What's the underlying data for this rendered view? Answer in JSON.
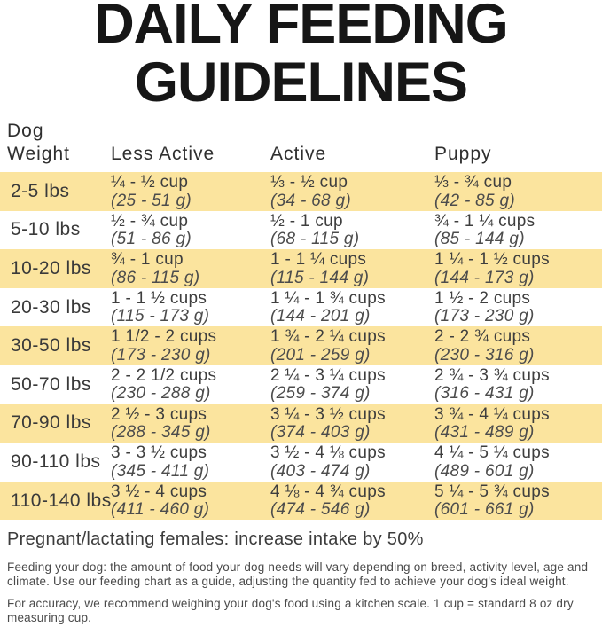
{
  "title": {
    "line1": "DAILY FEEDING",
    "line2": "GUIDELINES"
  },
  "table": {
    "headers": {
      "weight_line1": "Dog",
      "weight_line2": "Weight",
      "less_active": "Less Active",
      "active": "Active",
      "puppy": "Puppy"
    },
    "rows": [
      {
        "weight": "2-5 lbs",
        "less_active": {
          "cups": "¼ - ½ cup",
          "grams": "(25 - 51 g)"
        },
        "active": {
          "cups": "⅓ - ½ cup",
          "grams": "(34 - 68 g)"
        },
        "puppy": {
          "cups": "⅓ - ¾ cup",
          "grams": "(42 - 85 g)"
        }
      },
      {
        "weight": "5-10 lbs",
        "less_active": {
          "cups": "½ - ¾ cup",
          "grams": "(51 - 86 g)"
        },
        "active": {
          "cups": "½ - 1 cup",
          "grams": "(68 - 115 g)"
        },
        "puppy": {
          "cups": "¾ - 1 ¼ cups",
          "grams": "(85 - 144 g)"
        }
      },
      {
        "weight": "10-20 lbs",
        "less_active": {
          "cups": "¾ - 1 cup",
          "grams": "(86 - 115 g)"
        },
        "active": {
          "cups": "1 - 1 ¼ cups",
          "grams": "(115 - 144 g)"
        },
        "puppy": {
          "cups": "1 ¼ - 1 ½ cups",
          "grams": "(144 - 173 g)"
        }
      },
      {
        "weight": "20-30 lbs",
        "less_active": {
          "cups": "1 - 1 ½ cups",
          "grams": "(115 - 173 g)"
        },
        "active": {
          "cups": "1 ¼ - 1 ¾ cups",
          "grams": "(144 - 201 g)"
        },
        "puppy": {
          "cups": "1 ½ - 2 cups",
          "grams": "(173 - 230 g)"
        }
      },
      {
        "weight": "30-50 lbs",
        "less_active": {
          "cups": "1 1/2 - 2 cups",
          "grams": "(173 - 230 g)"
        },
        "active": {
          "cups": "1 ¾ - 2 ¼ cups",
          "grams": "(201 - 259 g)"
        },
        "puppy": {
          "cups": "2 - 2 ¾ cups",
          "grams": "(230 - 316 g)"
        }
      },
      {
        "weight": "50-70 lbs",
        "less_active": {
          "cups": "2 - 2 1/2 cups",
          "grams": "(230 - 288 g)"
        },
        "active": {
          "cups": "2 ¼ - 3 ¼ cups",
          "grams": "(259 - 374 g)"
        },
        "puppy": {
          "cups": "2 ¾ - 3 ¾ cups",
          "grams": "(316 - 431 g)"
        }
      },
      {
        "weight": "70-90 lbs",
        "less_active": {
          "cups": "2 ½ - 3 cups",
          "grams": "(288 - 345 g)"
        },
        "active": {
          "cups": "3 ¼ - 3 ½ cups",
          "grams": "(374 - 403 g)"
        },
        "puppy": {
          "cups": "3 ¾ - 4 ¼ cups",
          "grams": "(431 - 489 g)"
        }
      },
      {
        "weight": "90-110 lbs",
        "less_active": {
          "cups": "3 - 3 ½ cups",
          "grams": "(345 - 411 g)"
        },
        "active": {
          "cups": "3 ½ - 4 ⅛ cups",
          "grams": "(403 - 474 g)"
        },
        "puppy": {
          "cups": "4 ¼ - 5 ¼ cups",
          "grams": "(489 - 601 g)"
        }
      },
      {
        "weight": "110-140 lbs",
        "less_active": {
          "cups": "3 ½ - 4 cups",
          "grams": "(411 - 460 g)"
        },
        "active": {
          "cups": "4 ⅛ - 4 ¾ cups",
          "grams": "(474 - 546 g)"
        },
        "puppy": {
          "cups": "5 ¼ - 5 ¾ cups",
          "grams": "(601 - 661 g)"
        }
      }
    ]
  },
  "notes": {
    "pregnant": "Pregnant/lactating females: increase intake by 50%",
    "para1": "Feeding your dog: the amount of food your dog needs will vary depending on breed, activity level, age and climate. Use our feeding chart as a guide, adjusting the quantity fed to achieve your dog's ideal weight.",
    "para2": "For accuracy, we recommend weighing your dog's food using a kitchen scale. 1 cup = standard 8 oz dry measuring cup."
  },
  "colors": {
    "row_highlight": "#FBE49E",
    "row_plain": "#FFFFFF",
    "title_text": "#161616",
    "body_text": "#3e3e3e"
  }
}
